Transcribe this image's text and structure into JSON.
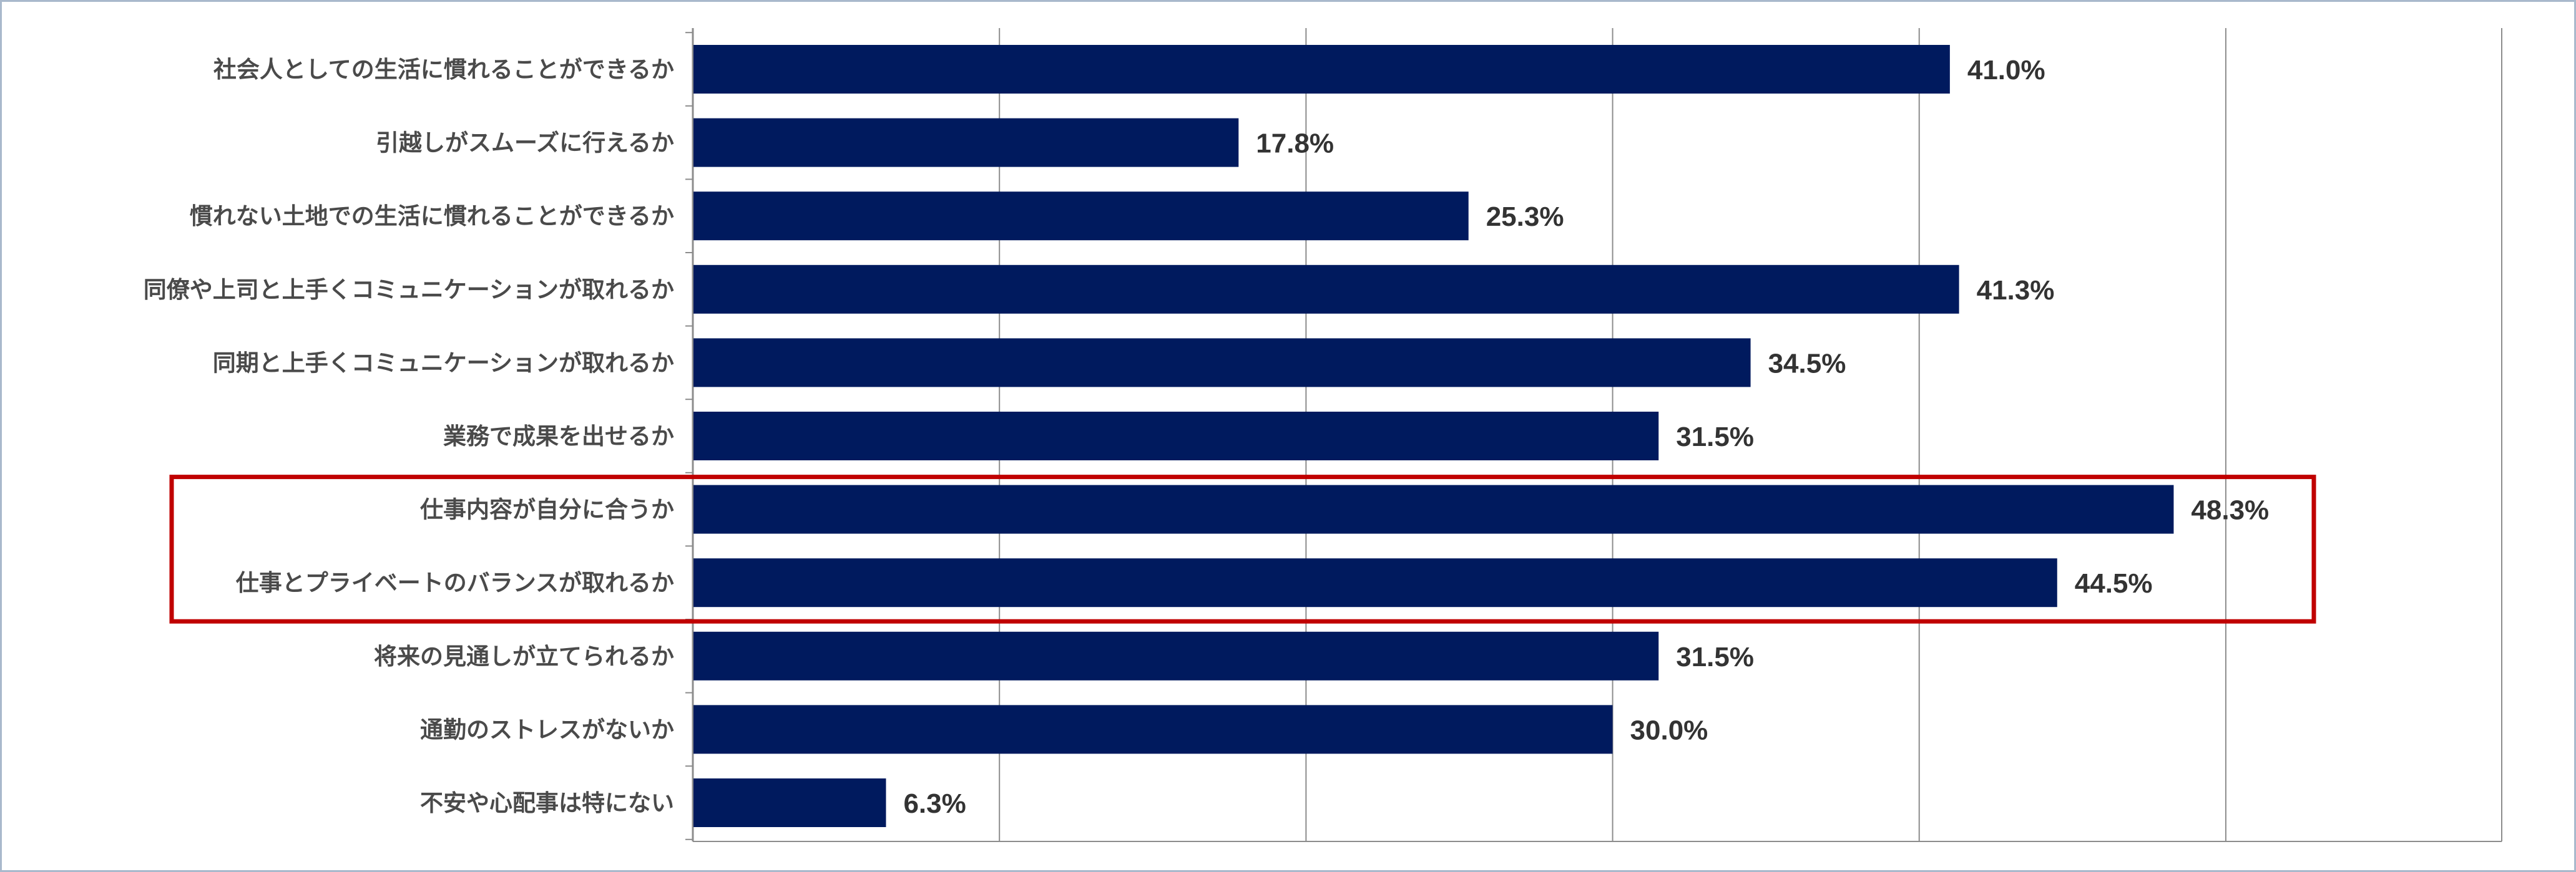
{
  "chart_data": {
    "type": "bar",
    "orientation": "horizontal",
    "categories": [
      "社会人としての生活に慣れることができるか",
      "引越しがスムーズに行えるか",
      "慣れない土地での生活に慣れることができるか",
      "同僚や上司と上手くコミュニケーションが取れるか",
      "同期と上手くコミュニケーションが取れるか",
      "業務で成果を出せるか",
      "仕事内容が自分に合うか",
      "仕事とプライベートのバランスが取れるか",
      "将来の見通しが立てられるか",
      "通勤のストレスがないか",
      "不安や心配事は特にない"
    ],
    "values": [
      41.0,
      17.8,
      25.3,
      41.3,
      34.5,
      31.5,
      48.3,
      44.5,
      31.5,
      30.0,
      6.3
    ],
    "value_labels": [
      "41.0%",
      "17.8%",
      "25.3%",
      "41.3%",
      "34.5%",
      "31.5%",
      "48.3%",
      "44.5%",
      "31.5%",
      "30.0%",
      "6.3%"
    ],
    "xlim": [
      0,
      59
    ],
    "gridline_values": [
      0,
      10,
      20,
      30,
      40,
      50
    ],
    "grid": true,
    "highlight_categories": [
      6,
      7
    ],
    "colors": {
      "bar": "#001a5e",
      "grid": "#8c8c8c",
      "highlight_box": "#c00000",
      "frame": "#a9b9cc"
    }
  }
}
